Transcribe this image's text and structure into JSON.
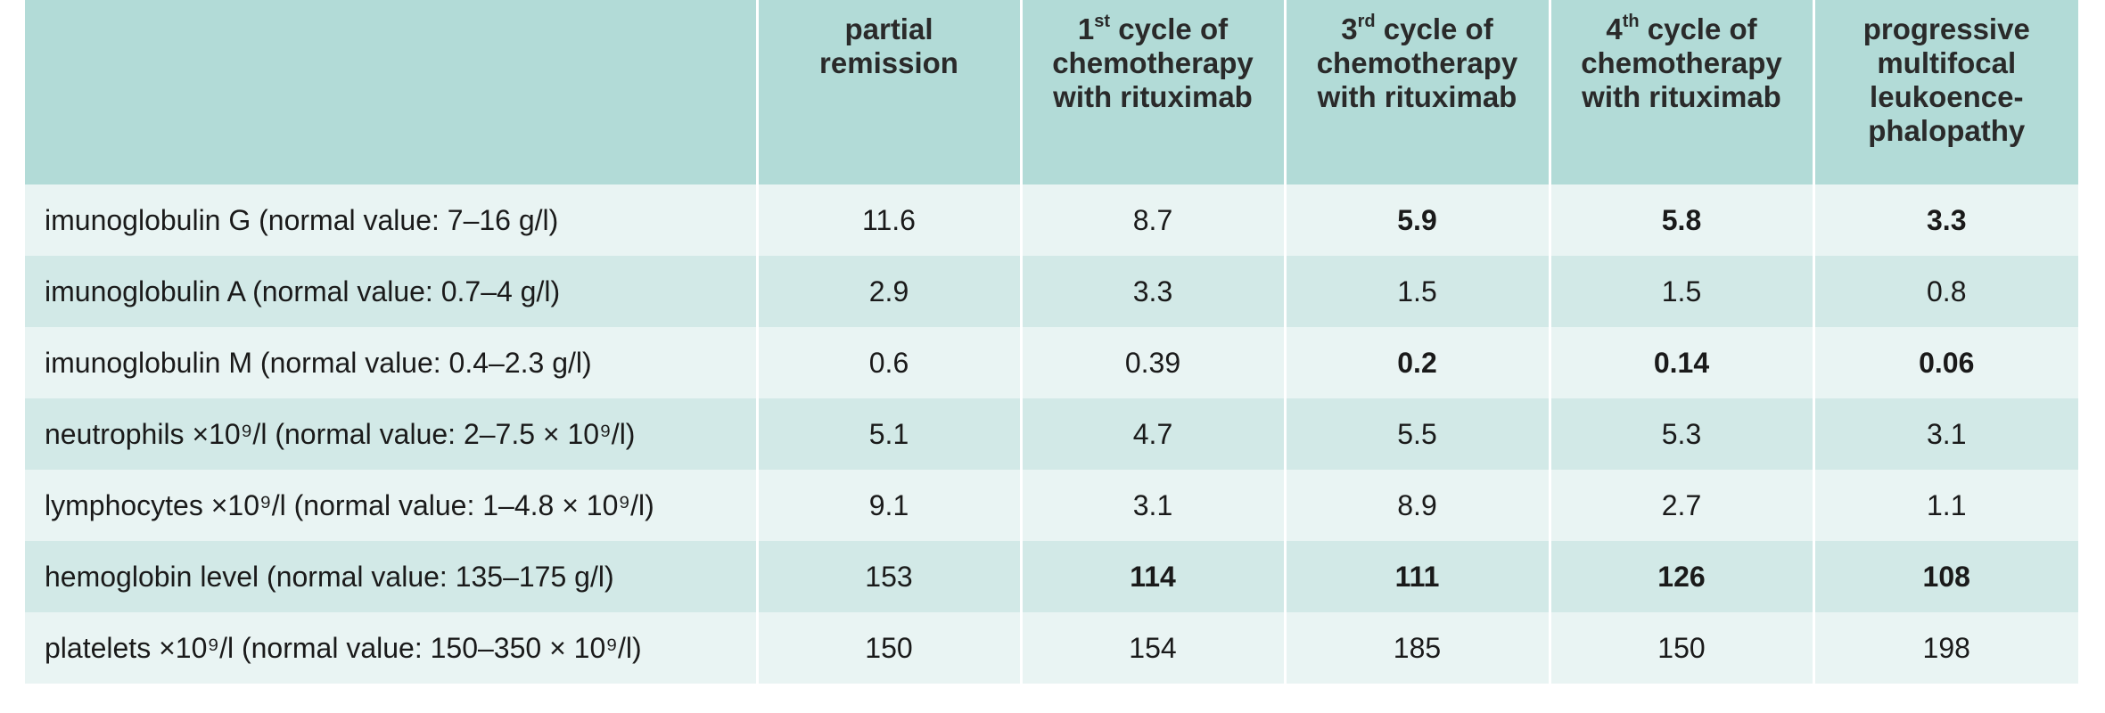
{
  "table": {
    "headers": [
      {
        "lines": [
          ""
        ]
      },
      {
        "lines": [
          "partial",
          "remission"
        ]
      },
      {
        "ordinal": "1",
        "sup": "st",
        "rest": " cycle of",
        "lines": [
          "chemotherapy",
          "with rituximab"
        ]
      },
      {
        "ordinal": "3",
        "sup": "rd",
        "rest": " cycle of",
        "lines": [
          "chemotherapy",
          "with rituximab"
        ]
      },
      {
        "ordinal": "4",
        "sup": "th",
        "rest": " cycle of",
        "lines": [
          "chemotherapy",
          "with rituximab"
        ]
      },
      {
        "lines": [
          "progressive",
          "multifocal",
          "leukoence-",
          "phalopathy"
        ]
      }
    ],
    "rows": [
      {
        "label": "imunoglobulin G (normal value: 7–16 g/l)",
        "cells": [
          {
            "value": "11.6",
            "bold": false
          },
          {
            "value": "8.7",
            "bold": false
          },
          {
            "value": "5.9",
            "bold": true
          },
          {
            "value": "5.8",
            "bold": true
          },
          {
            "value": "3.3",
            "bold": true
          }
        ]
      },
      {
        "label": "imunoglobulin A (normal value: 0.7–4 g/l)",
        "cells": [
          {
            "value": "2.9",
            "bold": false
          },
          {
            "value": "3.3",
            "bold": false
          },
          {
            "value": "1.5",
            "bold": false
          },
          {
            "value": "1.5",
            "bold": false
          },
          {
            "value": "0.8",
            "bold": false
          }
        ]
      },
      {
        "label": "imunoglobulin M (normal value: 0.4–2.3 g/l)",
        "cells": [
          {
            "value": "0.6",
            "bold": false
          },
          {
            "value": "0.39",
            "bold": false
          },
          {
            "value": "0.2",
            "bold": true
          },
          {
            "value": "0.14",
            "bold": true
          },
          {
            "value": "0.06",
            "bold": true
          }
        ]
      },
      {
        "label": "neutrophils ×10⁹/l (normal value: 2–7.5 × 10⁹/l)",
        "cells": [
          {
            "value": "5.1",
            "bold": false
          },
          {
            "value": "4.7",
            "bold": false
          },
          {
            "value": "5.5",
            "bold": false
          },
          {
            "value": "5.3",
            "bold": false
          },
          {
            "value": "3.1",
            "bold": false
          }
        ]
      },
      {
        "label": "lymphocytes ×10⁹/l (normal value: 1–4.8 × 10⁹/l)",
        "cells": [
          {
            "value": "9.1",
            "bold": false
          },
          {
            "value": "3.1",
            "bold": false
          },
          {
            "value": "8.9",
            "bold": false
          },
          {
            "value": "2.7",
            "bold": false
          },
          {
            "value": "1.1",
            "bold": false
          }
        ]
      },
      {
        "label": "hemoglobin level (normal value: 135–175 g/l)",
        "cells": [
          {
            "value": "153",
            "bold": false
          },
          {
            "value": "114",
            "bold": true
          },
          {
            "value": "111",
            "bold": true
          },
          {
            "value": "126",
            "bold": true
          },
          {
            "value": "108",
            "bold": true
          }
        ]
      },
      {
        "label": "platelets ×10⁹/l (normal value: 150–350 × 10⁹/l)",
        "cells": [
          {
            "value": "150",
            "bold": false
          },
          {
            "value": "154",
            "bold": false
          },
          {
            "value": "185",
            "bold": false
          },
          {
            "value": "150",
            "bold": false
          },
          {
            "value": "198",
            "bold": false
          }
        ]
      }
    ]
  }
}
